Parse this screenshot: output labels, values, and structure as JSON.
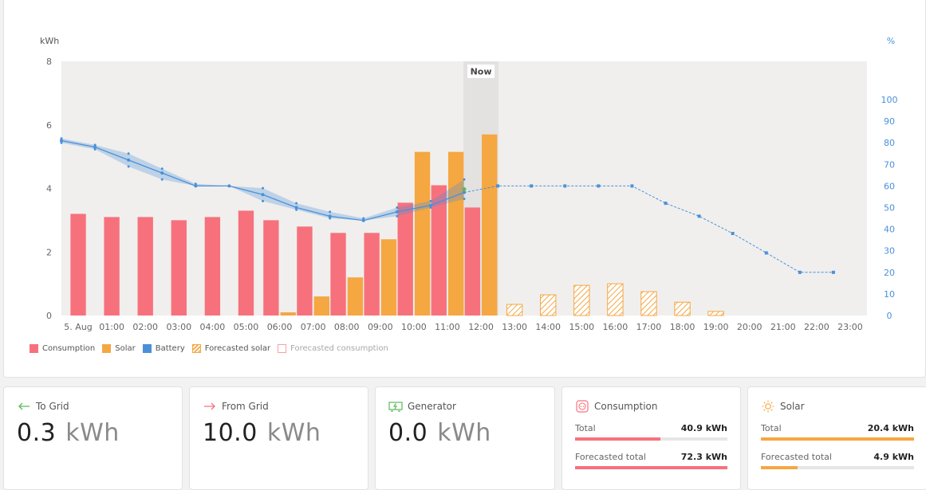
{
  "chart_data": {
    "type": "bar",
    "y_axis_left": {
      "label": "kWh",
      "ticks": [
        "0",
        "2",
        "4",
        "6",
        "8"
      ],
      "range": [
        0,
        8
      ]
    },
    "y_axis_right": {
      "label": "%",
      "ticks": [
        "0",
        "10",
        "20",
        "30",
        "40",
        "50",
        "60",
        "70",
        "80",
        "90",
        "100"
      ],
      "range": [
        0,
        100
      ]
    },
    "now_label": "Now",
    "now_index": 12,
    "categories": [
      "5. Aug",
      "01:00",
      "02:00",
      "03:00",
      "04:00",
      "05:00",
      "06:00",
      "07:00",
      "08:00",
      "09:00",
      "10:00",
      "11:00",
      "12:00",
      "13:00",
      "14:00",
      "15:00",
      "16:00",
      "17:00",
      "18:00",
      "19:00",
      "20:00",
      "21:00",
      "22:00",
      "23:00"
    ],
    "series": [
      {
        "name": "Consumption",
        "kind": "bar",
        "color": "#f7717d",
        "values": [
          3.2,
          3.1,
          3.1,
          3.0,
          3.1,
          3.3,
          3.0,
          2.8,
          2.6,
          2.6,
          3.55,
          4.1,
          3.4,
          null,
          null,
          null,
          null,
          null,
          null,
          null,
          null,
          null,
          null,
          null
        ]
      },
      {
        "name": "Solar",
        "kind": "bar",
        "color": "#f5a742",
        "values": [
          null,
          null,
          null,
          null,
          null,
          null,
          0.1,
          0.6,
          1.2,
          2.4,
          5.15,
          5.15,
          5.7,
          null,
          null,
          null,
          null,
          null,
          null,
          null,
          null,
          null,
          null,
          null
        ]
      },
      {
        "name": "Battery",
        "kind": "line",
        "axis": "right",
        "color": "#4a90d9",
        "values": [
          81,
          78,
          72,
          66,
          60,
          60,
          56,
          50,
          46,
          44,
          48,
          51,
          57,
          60,
          60,
          60,
          60,
          60,
          52,
          46,
          38,
          29,
          20,
          20
        ],
        "band_min": [
          80,
          77,
          69,
          63,
          60,
          60,
          53,
          49,
          45,
          44,
          46,
          50,
          54
        ],
        "band_max": [
          82,
          79,
          75,
          68,
          61,
          60,
          59,
          52,
          48,
          45,
          50,
          53,
          63
        ]
      },
      {
        "name": "Forecasted solar",
        "kind": "bar",
        "color": "#f5a742",
        "pattern": "hatched",
        "values": [
          null,
          null,
          null,
          null,
          null,
          null,
          null,
          null,
          null,
          null,
          null,
          null,
          null,
          0.35,
          0.65,
          0.95,
          1.0,
          0.75,
          0.42,
          0.13,
          null,
          null,
          null,
          null
        ]
      },
      {
        "name": "Forecasted consumption",
        "kind": "bar",
        "color": "#f7717d",
        "pattern": "outline",
        "values": [
          null,
          null,
          null,
          null,
          null,
          null,
          null,
          null,
          null,
          null,
          null,
          null,
          null,
          null,
          null,
          null,
          null,
          null,
          null,
          null,
          null,
          null,
          null,
          null
        ]
      }
    ]
  },
  "cards": {
    "to_grid": {
      "title": "To Grid",
      "value": "0.3",
      "unit": "kWh",
      "icon": "arrow-left-icon",
      "icon_color": "#5cb85c"
    },
    "from_grid": {
      "title": "From Grid",
      "value": "10.0",
      "unit": "kWh",
      "icon": "arrow-right-icon",
      "icon_color": "#f7717d"
    },
    "generator": {
      "title": "Generator",
      "value": "0.0",
      "unit": "kWh",
      "icon": "generator-icon",
      "icon_color": "#5cb85c"
    },
    "consumption": {
      "title": "Consumption",
      "icon": "outlet-icon",
      "icon_color": "#f7717d",
      "total_label": "Total",
      "total_value": "40.9 kWh",
      "total_fill": 0.56,
      "forecast_label": "Forecasted total",
      "forecast_value": "72.3 kWh",
      "forecast_fill": 1.0
    },
    "solar": {
      "title": "Solar",
      "icon": "sun-icon",
      "icon_color": "#f5a742",
      "total_label": "Total",
      "total_value": "20.4 kWh",
      "total_fill": 1.0,
      "forecast_label": "Forecasted total",
      "forecast_value": "4.9 kWh",
      "forecast_fill": 0.24
    }
  }
}
